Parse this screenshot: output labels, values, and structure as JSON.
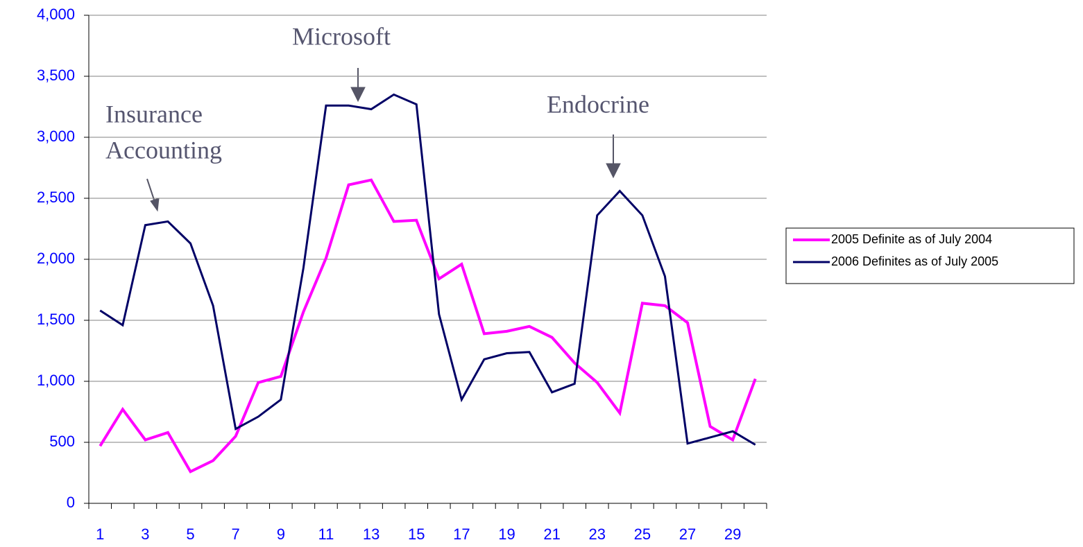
{
  "chart_data": {
    "type": "line",
    "categories": [
      "1",
      null,
      "3",
      null,
      "5",
      null,
      "7",
      null,
      "9",
      null,
      "11",
      null,
      "13",
      null,
      "15",
      null,
      "17",
      null,
      "19",
      null,
      "21",
      null,
      "23",
      null,
      "25",
      null,
      "27",
      null,
      "29",
      null
    ],
    "series": [
      {
        "name": "2005 Definite as of July 2004",
        "color": "#ff00ff",
        "values": [
          470,
          770,
          520,
          580,
          260,
          350,
          550,
          990,
          1040,
          1570,
          2010,
          2610,
          2650,
          2310,
          2320,
          1840,
          1960,
          1390,
          1410,
          1450,
          1360,
          1150,
          990,
          740,
          1640,
          1620,
          1480,
          630,
          520,
          1020
        ]
      },
      {
        "name": "2006 Definites as of July 2005",
        "color": "#000066",
        "values": [
          1580,
          1460,
          2280,
          2310,
          2130,
          1620,
          610,
          710,
          850,
          1930,
          3260,
          3260,
          3230,
          3350,
          3270,
          1550,
          850,
          1180,
          1230,
          1240,
          910,
          980,
          2360,
          2560,
          2360,
          1860,
          490,
          540,
          590,
          480
        ]
      }
    ],
    "ylim": [
      0,
      4000
    ],
    "yticks": [
      0,
      500,
      {
        "value": 1000,
        "label": "1,000"
      },
      {
        "value": 1500,
        "label": "1,500"
      },
      {
        "value": 2000,
        "label": "2,000"
      },
      {
        "value": 2500,
        "label": "2,500"
      },
      {
        "value": 3000,
        "label": "3,000"
      },
      {
        "value": 3500,
        "label": "3,500"
      },
      {
        "value": 4000,
        "label": "4,000"
      }
    ],
    "grid": true,
    "legend": "right",
    "annotations": [
      "Insurance",
      "Accounting",
      "Microsoft",
      "Endocrine"
    ]
  }
}
